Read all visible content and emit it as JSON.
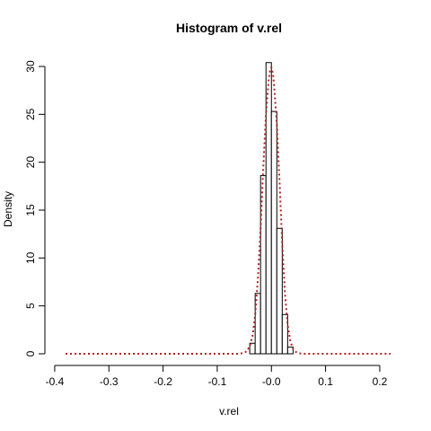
{
  "chart_data": {
    "type": "bar",
    "title": "Histogram of v.rel",
    "xlabel": "v.rel",
    "ylabel": "Density",
    "xlim": [
      -0.38,
      0.22
    ],
    "ylim": [
      0,
      30
    ],
    "x_ticks": [
      -0.4,
      -0.3,
      -0.2,
      -0.1,
      0.0,
      0.1,
      0.2
    ],
    "x_tick_labels": [
      "-0.4",
      "-0.3",
      "-0.2",
      "-0.1",
      "-0.0",
      "0.1",
      "0.2"
    ],
    "y_ticks": [
      0,
      5,
      10,
      15,
      20,
      25,
      30
    ],
    "y_tick_labels": [
      "0",
      "5",
      "10",
      "15",
      "20",
      "25",
      "30"
    ],
    "grid": false,
    "series": [
      {
        "type": "histogram",
        "bin_edges": [
          -0.04,
          -0.03,
          -0.02,
          -0.01,
          0.0,
          0.01,
          0.02,
          0.03,
          0.04
        ],
        "density": [
          1.1,
          6.3,
          18.6,
          30.4,
          25.3,
          13.1,
          4.1,
          0.7
        ],
        "fill": "#ffffff",
        "border": "#000000"
      },
      {
        "type": "density_curve",
        "style": "dotted",
        "color": "#b22222",
        "x": [
          -0.38,
          -0.06,
          -0.05,
          -0.045,
          -0.04,
          -0.035,
          -0.03,
          -0.025,
          -0.02,
          -0.015,
          -0.01,
          -0.005,
          -0.002,
          0.0,
          0.003,
          0.005,
          0.01,
          0.015,
          0.02,
          0.025,
          0.03,
          0.035,
          0.04,
          0.045,
          0.05,
          0.06,
          0.22
        ],
        "y": [
          0,
          0,
          0.1,
          0.3,
          0.8,
          1.8,
          4.0,
          7.8,
          13.0,
          19.5,
          25.0,
          28.6,
          29.8,
          29.9,
          29.2,
          28.0,
          24.0,
          18.0,
          11.5,
          6.3,
          3.0,
          1.3,
          0.5,
          0.2,
          0.05,
          0,
          0
        ]
      }
    ]
  }
}
